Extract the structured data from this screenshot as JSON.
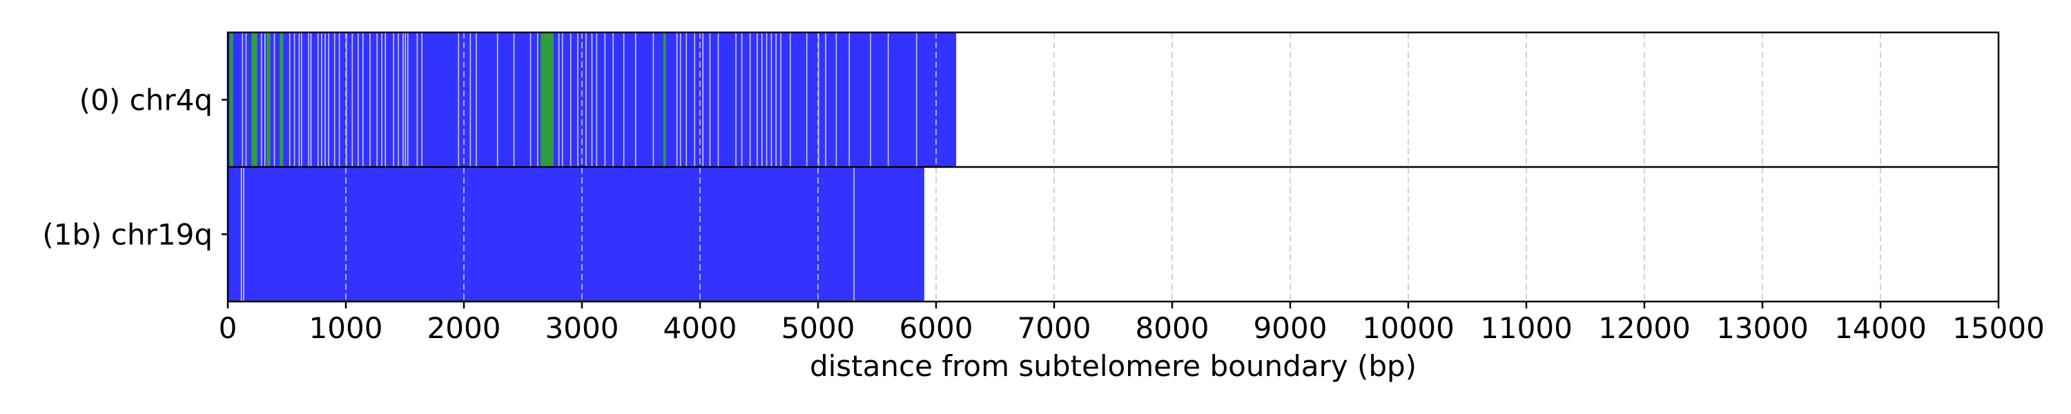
{
  "chart_data": {
    "type": "track",
    "xlabel": "distance from subtelomere boundary (bp)",
    "xlim": [
      0,
      15000
    ],
    "x_ticks": [
      0,
      1000,
      2000,
      3000,
      4000,
      5000,
      6000,
      7000,
      8000,
      9000,
      10000,
      11000,
      12000,
      13000,
      14000,
      15000
    ],
    "tick_labels": [
      "0",
      "1000",
      "2000",
      "3000",
      "4000",
      "5000",
      "6000",
      "7000",
      "8000",
      "9000",
      "10000",
      "11000",
      "12000",
      "13000",
      "14000",
      "15000"
    ],
    "grid": "vertical dashed",
    "colors": {
      "primary": "#3333ff",
      "secondary": "#2e9e3e",
      "gap": "#c8c8f0",
      "grid": "#c8c8c8"
    },
    "tracks": [
      {
        "label": "(0) chr4q",
        "length": 6170,
        "secondary_segments": [
          [
            15,
            45
          ],
          [
            200,
            250
          ],
          [
            330,
            360
          ],
          [
            440,
            470
          ],
          [
            2650,
            2760
          ],
          [
            3690,
            3710
          ]
        ],
        "gap_positions": [
          120,
          150,
          280,
          310,
          390,
          520,
          560,
          600,
          620,
          680,
          700,
          760,
          790,
          820,
          850,
          900,
          940,
          1000,
          1050,
          1100,
          1140,
          1200,
          1260,
          1300,
          1330,
          1400,
          1440,
          1480,
          1500,
          1520,
          1600,
          1640,
          1950,
          2050,
          2100,
          2280,
          2420,
          2560,
          2620,
          2800,
          2830,
          2900,
          2960,
          3030,
          3080,
          3120,
          3190,
          3260,
          3350,
          3450,
          3600,
          3800,
          3830,
          3880,
          3950,
          4020,
          4080,
          4150,
          4300,
          4350,
          4420,
          4480,
          4520,
          4560,
          4600,
          4640,
          4680,
          4760,
          4900,
          5000,
          5060,
          5150,
          5260,
          5440,
          5590,
          5830
        ]
      },
      {
        "label": "(1b) chr19q",
        "length": 5900,
        "secondary_segments": [],
        "gap_positions": [
          110,
          130,
          5300
        ]
      }
    ]
  }
}
